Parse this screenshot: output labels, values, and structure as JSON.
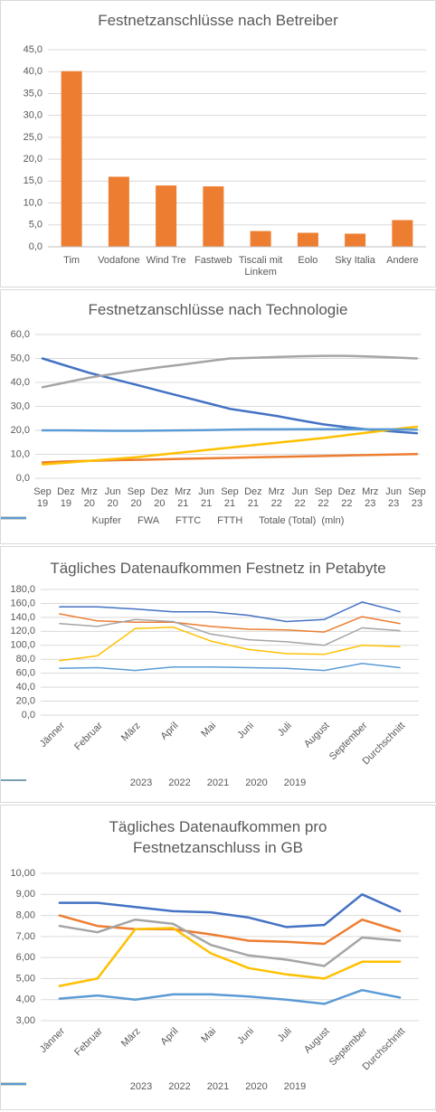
{
  "chart_data": [
    {
      "type": "bar",
      "title": "Festnetzanschlüsse nach Betreiber",
      "categories": [
        "Tim",
        "Vodafone",
        "Wind Tre",
        "Fastweb",
        "Tiscali mit Linkem",
        "Eolo",
        "Sky Italia",
        "Andere"
      ],
      "values": [
        40.1,
        16.0,
        14.0,
        13.8,
        3.6,
        3.2,
        3.0,
        6.1
      ],
      "color": "#ed7d31",
      "ylim": [
        0,
        45
      ],
      "yticks": [
        {
          "value": 0,
          "label": "0,0"
        },
        {
          "value": 5,
          "label": "5,0"
        },
        {
          "value": 10,
          "label": "10,0"
        },
        {
          "value": 15,
          "label": "15,0"
        },
        {
          "value": 20,
          "label": "20,0"
        },
        {
          "value": 25,
          "label": "25,0"
        },
        {
          "value": 30,
          "label": "30,0"
        },
        {
          "value": 35,
          "label": "35,0"
        },
        {
          "value": 40,
          "label": "40,0"
        },
        {
          "value": 45,
          "label": "45,0"
        }
      ],
      "grid": true
    },
    {
      "type": "line",
      "title": "Festnetzanschlüsse nach Technologie",
      "categories": [
        "Sep 19",
        "Dez 19",
        "Mrz 20",
        "Jun 20",
        "Sep 20",
        "Dez 20",
        "Mrz 21",
        "Jun 21",
        "Sep 21",
        "Dez 21",
        "Mrz 22",
        "Jun 22",
        "Sep 22",
        "Dez 22",
        "Mrz 23",
        "Jun 23",
        "Sep 23"
      ],
      "series": [
        {
          "name": "Kupfer",
          "color": "#4472c4",
          "values": [
            50.0,
            47.0,
            44.0,
            41.5,
            39.0,
            36.5,
            34.0,
            31.5,
            29.0,
            27.5,
            26.0,
            24.2,
            22.5,
            21.3,
            20.3,
            19.5,
            18.8
          ]
        },
        {
          "name": "FWA",
          "color": "#ed7d31",
          "values": [
            6.6,
            7.0,
            7.3,
            7.5,
            7.7,
            7.9,
            8.1,
            8.3,
            8.5,
            8.7,
            8.9,
            9.1,
            9.3,
            9.5,
            9.7,
            9.9,
            10.1
          ]
        },
        {
          "name": "FTTC",
          "color": "#a5a5a5",
          "values": [
            38.0,
            40.0,
            42.0,
            43.5,
            45.0,
            46.3,
            47.5,
            48.8,
            50.0,
            50.3,
            50.6,
            50.9,
            51.1,
            51.1,
            50.8,
            50.4,
            50.0
          ]
        },
        {
          "name": "FTTH",
          "color": "#ffc000",
          "values": [
            5.8,
            6.5,
            7.3,
            8.0,
            8.8,
            9.8,
            10.8,
            11.8,
            12.8,
            13.8,
            14.8,
            15.8,
            16.8,
            18.0,
            19.2,
            20.4,
            21.5
          ]
        },
        {
          "name": "Totale (Total)  (mln)",
          "color": "#5b9bd5",
          "values": [
            20.0,
            20.0,
            19.9,
            19.8,
            19.8,
            19.9,
            20.0,
            20.1,
            20.3,
            20.4,
            20.4,
            20.5,
            20.5,
            20.5,
            20.4,
            20.4,
            20.3
          ]
        }
      ],
      "ylim": [
        0,
        60
      ],
      "yticks": [
        {
          "value": 0,
          "label": "0,0"
        },
        {
          "value": 10,
          "label": "10,0"
        },
        {
          "value": 20,
          "label": "20,0"
        },
        {
          "value": 30,
          "label": "30,0"
        },
        {
          "value": 40,
          "label": "40,0"
        },
        {
          "value": 50,
          "label": "50,0"
        },
        {
          "value": 60,
          "label": "60,0"
        }
      ],
      "grid": true,
      "legend": "bottom"
    },
    {
      "type": "line",
      "title": "Tägliches Datenaufkommen Festnetz in Petabyte",
      "categories": [
        "Jänner",
        "Februar",
        "März",
        "April",
        "Mai",
        "Juni",
        "Juli",
        "August",
        "September",
        "Durchschnitt"
      ],
      "series": [
        {
          "name": "2023",
          "color": "#4472c4",
          "values": [
            155,
            155,
            152,
            148,
            148,
            143,
            134,
            137,
            162,
            148
          ]
        },
        {
          "name": "2022",
          "color": "#ed7d31",
          "values": [
            145,
            135,
            133,
            133,
            127,
            123,
            122,
            119,
            141,
            131
          ]
        },
        {
          "name": "2021",
          "color": "#a5a5a5",
          "values": [
            131,
            127,
            137,
            134,
            116,
            108,
            105,
            100,
            125,
            121
          ]
        },
        {
          "name": "2020",
          "color": "#ffc000",
          "values": [
            78,
            85,
            124,
            126,
            106,
            94,
            88,
            87,
            100,
            98
          ]
        },
        {
          "name": "2019",
          "color": "#5b9bd5",
          "values": [
            67,
            68,
            64,
            69,
            69,
            68,
            67,
            64,
            74,
            68
          ]
        }
      ],
      "ylim": [
        0,
        180
      ],
      "yticks": [
        {
          "value": 0,
          "label": "0,0"
        },
        {
          "value": 20,
          "label": "20,0"
        },
        {
          "value": 40,
          "label": "40,0"
        },
        {
          "value": 60,
          "label": "60,0"
        },
        {
          "value": 80,
          "label": "80,0"
        },
        {
          "value": 100,
          "label": "100,0"
        },
        {
          "value": 120,
          "label": "120,0"
        },
        {
          "value": 140,
          "label": "140,0"
        },
        {
          "value": 160,
          "label": "160,0"
        },
        {
          "value": 180,
          "label": "180,0"
        }
      ],
      "grid": true,
      "legend": "bottom"
    },
    {
      "type": "line",
      "title": "Tägliches Datenaufkommen pro Festnetzanschluss in GB",
      "categories": [
        "Jänner",
        "Februar",
        "März",
        "April",
        "Mai",
        "Juni",
        "Juli",
        "August",
        "September",
        "Durchschnitt"
      ],
      "series": [
        {
          "name": "2023",
          "color": "#4472c4",
          "values": [
            8.6,
            8.6,
            8.4,
            8.2,
            8.15,
            7.9,
            7.45,
            7.55,
            9.0,
            8.2
          ]
        },
        {
          "name": "2022",
          "color": "#ed7d31",
          "values": [
            8.0,
            7.5,
            7.35,
            7.35,
            7.1,
            6.8,
            6.75,
            6.65,
            7.8,
            7.25
          ]
        },
        {
          "name": "2021",
          "color": "#a5a5a5",
          "values": [
            7.5,
            7.2,
            7.8,
            7.6,
            6.6,
            6.1,
            5.9,
            5.6,
            6.95,
            6.8
          ]
        },
        {
          "name": "2020",
          "color": "#ffc000",
          "values": [
            4.65,
            5.0,
            7.35,
            7.4,
            6.2,
            5.5,
            5.2,
            5.0,
            5.8,
            5.8
          ]
        },
        {
          "name": "2019",
          "color": "#5b9bd5",
          "values": [
            4.05,
            4.2,
            4.0,
            4.25,
            4.25,
            4.15,
            4.0,
            3.8,
            4.45,
            4.1
          ]
        }
      ],
      "ylim": [
        3,
        10
      ],
      "yticks": [
        {
          "value": 3,
          "label": "3,00"
        },
        {
          "value": 4,
          "label": "4,00"
        },
        {
          "value": 5,
          "label": "5,00"
        },
        {
          "value": 6,
          "label": "6,00"
        },
        {
          "value": 7,
          "label": "7,00"
        },
        {
          "value": 8,
          "label": "8,00"
        },
        {
          "value": 9,
          "label": "9,00"
        },
        {
          "value": 10,
          "label": "10,00"
        }
      ],
      "grid": true,
      "legend": "bottom"
    }
  ]
}
